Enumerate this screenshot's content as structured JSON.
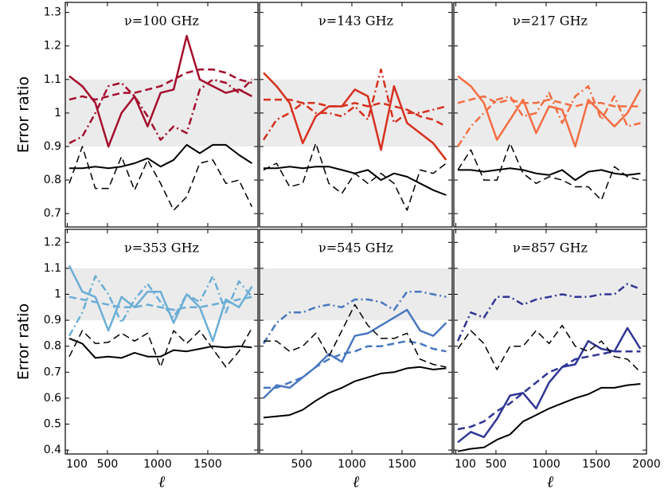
{
  "chart_data": [
    {
      "type": "line",
      "title": "ν=100 GHz",
      "ylabel": "Error ratio",
      "band": [
        0.9,
        1.1
      ],
      "band_color": "#ebebeb",
      "xlim": [
        80,
        2000
      ],
      "ylim": [
        0.66,
        1.33
      ],
      "yticks": [
        0.7,
        0.8,
        0.9,
        1.0,
        1.1,
        1.2,
        1.3
      ],
      "x": [
        120,
        250,
        380,
        510,
        640,
        770,
        900,
        1030,
        1160,
        1290,
        1420,
        1550,
        1680,
        1810,
        1940
      ],
      "series": [
        {
          "color": "#a50f2d",
          "dash": "solid",
          "values": [
            1.11,
            1.08,
            1.03,
            0.9,
            1.0,
            1.05,
            0.96,
            1.06,
            1.07,
            1.23,
            1.1,
            1.08,
            1.06,
            1.07,
            1.05
          ]
        },
        {
          "color": "#a50f2d",
          "dash": "dashed",
          "values": [
            1.04,
            1.05,
            1.04,
            1.05,
            1.06,
            1.06,
            1.07,
            1.08,
            1.1,
            1.12,
            1.13,
            1.13,
            1.12,
            1.1,
            1.09
          ]
        },
        {
          "color": "#a50f2d",
          "dash": "dashdot",
          "values": [
            0.91,
            0.93,
            1.0,
            1.08,
            1.09,
            1.05,
            0.99,
            0.92,
            0.96,
            0.94,
            1.07,
            1.1,
            1.09,
            1.06,
            1.1
          ]
        },
        {
          "color": "#000000",
          "dash": "solid",
          "values": [
            0.835,
            0.835,
            0.84,
            0.835,
            0.84,
            0.85,
            0.865,
            0.84,
            0.86,
            0.905,
            0.88,
            0.905,
            0.905,
            0.875,
            0.85
          ]
        },
        {
          "color": "#000000",
          "dash": "dashed",
          "values": [
            0.79,
            0.9,
            0.775,
            0.775,
            0.87,
            0.77,
            0.86,
            0.79,
            0.71,
            0.75,
            0.85,
            0.86,
            0.79,
            0.8,
            0.72
          ]
        }
      ]
    },
    {
      "type": "line",
      "title": "ν=143 GHz",
      "band": [
        0.9,
        1.1
      ],
      "band_color": "#ebebeb",
      "xlim": [
        80,
        2000
      ],
      "ylim": [
        0.66,
        1.33
      ],
      "x": [
        120,
        250,
        380,
        510,
        640,
        770,
        900,
        1030,
        1160,
        1290,
        1420,
        1550,
        1680,
        1810,
        1940
      ],
      "series": [
        {
          "color": "#d7301f",
          "dash": "solid",
          "values": [
            1.12,
            1.08,
            1.03,
            0.91,
            0.99,
            1.02,
            1.02,
            1.07,
            1.05,
            0.89,
            1.08,
            0.97,
            0.94,
            0.91,
            0.86
          ]
        },
        {
          "color": "#d7301f",
          "dash": "dashed",
          "values": [
            1.04,
            1.04,
            1.04,
            1.03,
            1.03,
            1.02,
            1.02,
            1.03,
            1.02,
            1.03,
            1.02,
            1.01,
            0.99,
            0.98,
            0.96
          ]
        },
        {
          "color": "#d7301f",
          "dash": "dashdot",
          "values": [
            0.92,
            0.98,
            1.0,
            1.03,
            1.0,
            1.0,
            0.99,
            1.02,
            0.98,
            1.13,
            0.97,
            1.0,
            1.0,
            1.01,
            1.02
          ]
        },
        {
          "color": "#000000",
          "dash": "solid",
          "values": [
            0.835,
            0.835,
            0.84,
            0.835,
            0.84,
            0.84,
            0.83,
            0.82,
            0.83,
            0.8,
            0.82,
            0.81,
            0.79,
            0.77,
            0.755
          ]
        },
        {
          "color": "#000000",
          "dash": "dashed",
          "values": [
            0.83,
            0.85,
            0.78,
            0.79,
            0.91,
            0.79,
            0.76,
            0.82,
            0.79,
            0.82,
            0.79,
            0.71,
            0.83,
            0.82,
            0.85
          ]
        }
      ]
    },
    {
      "type": "line",
      "title": "ν=217 GHz",
      "band": [
        0.9,
        1.1
      ],
      "band_color": "#ebebeb",
      "xlim": [
        80,
        2000
      ],
      "ylim": [
        0.66,
        1.33
      ],
      "x": [
        120,
        250,
        380,
        510,
        640,
        770,
        900,
        1030,
        1160,
        1290,
        1420,
        1550,
        1680,
        1810,
        1940
      ],
      "series": [
        {
          "color": "#f46d43",
          "dash": "solid",
          "values": [
            1.11,
            1.08,
            1.03,
            0.92,
            0.98,
            1.04,
            0.94,
            1.02,
            1.01,
            0.9,
            1.04,
            1.0,
            0.96,
            1.0,
            1.07
          ]
        },
        {
          "color": "#f46d43",
          "dash": "dashed",
          "values": [
            1.03,
            1.04,
            1.05,
            1.03,
            1.04,
            1.03,
            1.03,
            1.04,
            1.03,
            1.02,
            1.03,
            1.03,
            1.02,
            1.02,
            1.02
          ]
        },
        {
          "color": "#f46d43",
          "dash": "dashdot",
          "values": [
            0.9,
            0.96,
            1.0,
            1.04,
            1.05,
            0.99,
            1.0,
            1.06,
            0.97,
            1.05,
            1.08,
            0.98,
            1.05,
            0.96,
            0.97
          ]
        },
        {
          "color": "#000000",
          "dash": "solid",
          "values": [
            0.83,
            0.83,
            0.825,
            0.83,
            0.835,
            0.83,
            0.82,
            0.815,
            0.83,
            0.8,
            0.825,
            0.83,
            0.82,
            0.815,
            0.82
          ]
        },
        {
          "color": "#000000",
          "dash": "dashed",
          "values": [
            0.83,
            0.89,
            0.8,
            0.8,
            0.91,
            0.82,
            0.79,
            0.81,
            0.8,
            0.78,
            0.78,
            0.74,
            0.84,
            0.81,
            0.8
          ]
        }
      ]
    },
    {
      "type": "line",
      "title": "ν=353 GHz",
      "ylabel": "Error ratio",
      "xlabel": "ℓ",
      "band": [
        0.9,
        1.1
      ],
      "band_color": "#ebebeb",
      "xlim": [
        80,
        2000
      ],
      "ylim": [
        0.385,
        1.25
      ],
      "yticks": [
        0.4,
        0.5,
        0.6,
        0.7,
        0.8,
        0.9,
        1.0,
        1.1,
        1.2
      ],
      "xticks": [
        100,
        500,
        1000,
        1500
      ],
      "x": [
        120,
        250,
        380,
        510,
        640,
        770,
        900,
        1030,
        1160,
        1290,
        1420,
        1550,
        1680,
        1810,
        1940
      ],
      "series": [
        {
          "color": "#6baed6",
          "dash": "solid",
          "values": [
            1.11,
            1.01,
            0.99,
            0.86,
            0.99,
            0.95,
            1.01,
            1.01,
            0.89,
            1.0,
            0.95,
            0.82,
            0.98,
            0.95,
            1.03
          ]
        },
        {
          "color": "#6baed6",
          "dash": "dashed",
          "values": [
            0.99,
            0.98,
            0.97,
            0.96,
            0.95,
            0.95,
            0.96,
            0.95,
            0.94,
            0.95,
            0.95,
            0.96,
            0.97,
            0.98,
            0.99
          ]
        },
        {
          "color": "#6baed6",
          "dash": "dashdot",
          "values": [
            0.84,
            0.93,
            1.07,
            1.0,
            0.89,
            0.98,
            1.04,
            0.97,
            0.91,
            1.0,
            0.97,
            1.07,
            0.93,
            1.05,
            0.99
          ]
        },
        {
          "color": "#000000",
          "dash": "solid",
          "values": [
            0.83,
            0.81,
            0.755,
            0.76,
            0.755,
            0.775,
            0.76,
            0.76,
            0.785,
            0.78,
            0.79,
            0.8,
            0.795,
            0.8,
            0.795
          ]
        },
        {
          "color": "#000000",
          "dash": "dashed",
          "values": [
            0.76,
            0.86,
            0.81,
            0.815,
            0.85,
            0.82,
            0.85,
            0.72,
            0.86,
            0.81,
            0.86,
            0.79,
            0.72,
            0.78,
            0.87
          ]
        }
      ]
    },
    {
      "type": "line",
      "title": "ν=545 GHz",
      "xlabel": "ℓ",
      "band": [
        0.9,
        1.1
      ],
      "band_color": "#ebebeb",
      "xlim": [
        80,
        2000
      ],
      "ylim": [
        0.385,
        1.25
      ],
      "xticks": [
        500,
        1000,
        1500
      ],
      "x": [
        120,
        250,
        380,
        510,
        640,
        770,
        900,
        1030,
        1160,
        1290,
        1420,
        1550,
        1680,
        1810,
        1940
      ],
      "series": [
        {
          "color": "#4a78c0",
          "dash": "solid",
          "values": [
            0.6,
            0.65,
            0.64,
            0.68,
            0.72,
            0.77,
            0.74,
            0.84,
            0.85,
            0.88,
            0.91,
            0.94,
            0.86,
            0.84,
            0.89
          ]
        },
        {
          "color": "#4a78c0",
          "dash": "dashed",
          "values": [
            0.64,
            0.64,
            0.66,
            0.68,
            0.72,
            0.75,
            0.77,
            0.78,
            0.8,
            0.8,
            0.81,
            0.82,
            0.81,
            0.79,
            0.78
          ]
        },
        {
          "color": "#4a78c0",
          "dash": "dashdot",
          "values": [
            0.81,
            0.89,
            0.93,
            0.93,
            0.95,
            0.96,
            0.95,
            0.98,
            0.98,
            0.97,
            0.94,
            1.01,
            1.01,
            1.0,
            0.99
          ]
        },
        {
          "color": "#000000",
          "dash": "solid",
          "values": [
            0.525,
            0.53,
            0.535,
            0.555,
            0.59,
            0.62,
            0.64,
            0.665,
            0.68,
            0.695,
            0.7,
            0.715,
            0.72,
            0.71,
            0.715
          ]
        },
        {
          "color": "#000000",
          "dash": "dashed",
          "values": [
            0.82,
            0.82,
            0.78,
            0.8,
            0.85,
            0.76,
            0.86,
            0.96,
            0.88,
            0.83,
            0.83,
            0.85,
            0.75,
            0.73,
            0.72
          ]
        }
      ]
    },
    {
      "type": "line",
      "title": "ν=857 GHz",
      "xlabel": "ℓ",
      "band": [
        0.9,
        1.1
      ],
      "band_color": "#ebebeb",
      "xlim": [
        80,
        2000
      ],
      "ylim": [
        0.385,
        1.25
      ],
      "xticks": [
        100,
        500,
        1000,
        1500,
        2000
      ],
      "x": [
        120,
        250,
        380,
        510,
        640,
        770,
        900,
        1030,
        1160,
        1290,
        1420,
        1550,
        1680,
        1810,
        1940
      ],
      "series": [
        {
          "color": "#313695",
          "dash": "solid",
          "values": [
            0.43,
            0.47,
            0.45,
            0.52,
            0.61,
            0.62,
            0.56,
            0.66,
            0.72,
            0.73,
            0.82,
            0.79,
            0.78,
            0.87,
            0.79
          ]
        },
        {
          "color": "#313695",
          "dash": "dashed",
          "values": [
            0.48,
            0.49,
            0.51,
            0.55,
            0.58,
            0.62,
            0.66,
            0.7,
            0.72,
            0.75,
            0.76,
            0.77,
            0.78,
            0.78,
            0.78
          ]
        },
        {
          "color": "#313695",
          "dash": "dashdot",
          "values": [
            0.82,
            0.93,
            0.91,
            0.99,
            0.99,
            0.96,
            0.98,
            0.99,
            1.0,
            0.99,
            0.99,
            1.0,
            1.0,
            1.04,
            1.02
          ]
        },
        {
          "color": "#000000",
          "dash": "solid",
          "values": [
            0.395,
            0.405,
            0.41,
            0.44,
            0.46,
            0.51,
            0.535,
            0.56,
            0.58,
            0.6,
            0.615,
            0.64,
            0.64,
            0.65,
            0.655
          ]
        },
        {
          "color": "#000000",
          "dash": "dashed",
          "values": [
            0.79,
            0.86,
            0.81,
            0.71,
            0.8,
            0.8,
            0.86,
            0.81,
            0.88,
            0.8,
            0.78,
            0.82,
            0.76,
            0.75,
            0.7
          ]
        }
      ]
    }
  ]
}
